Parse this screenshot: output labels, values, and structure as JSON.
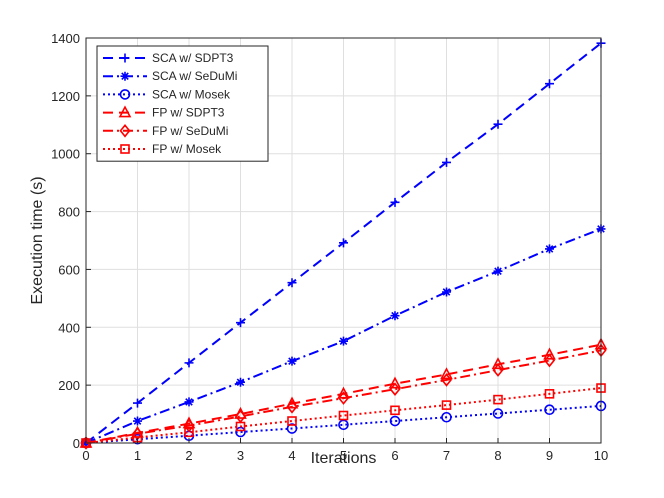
{
  "chart_data": {
    "type": "line",
    "title": "",
    "xlabel": "Iterations",
    "ylabel": "Execution time (s)",
    "xlim": [
      0,
      10
    ],
    "ylim": [
      0,
      1400
    ],
    "xticks": [
      0,
      1,
      2,
      3,
      4,
      5,
      6,
      7,
      8,
      9,
      10
    ],
    "yticks": [
      0,
      200,
      400,
      600,
      800,
      1000,
      1200,
      1400
    ],
    "grid": true,
    "legend_position": "top-left",
    "x": [
      0,
      1,
      2,
      3,
      4,
      5,
      6,
      7,
      8,
      9,
      10
    ],
    "series": [
      {
        "name": "SCA w/ SDPT3",
        "color": "#0000FF",
        "dash": "dashed",
        "marker": "plus",
        "values": [
          0,
          138,
          277,
          416,
          554,
          692,
          832,
          970,
          1102,
          1242,
          1382
        ]
      },
      {
        "name": "SCA w/ SeDuMi",
        "color": "#0000FF",
        "dash": "dashdot",
        "marker": "asterisk",
        "values": [
          0,
          76,
          142,
          210,
          283,
          352,
          440,
          522,
          594,
          671,
          740
        ]
      },
      {
        "name": "SCA w/ Mosek",
        "color": "#0000FF",
        "dash": "dotted",
        "marker": "circle",
        "values": [
          0,
          13,
          25,
          38,
          50,
          63,
          76,
          89,
          102,
          115,
          128
        ]
      },
      {
        "name": "FP w/ SDPT3",
        "color": "#FF0000",
        "dash": "dashed",
        "marker": "triangle",
        "values": [
          0,
          35,
          67,
          100,
          136,
          170,
          205,
          237,
          272,
          305,
          340
        ]
      },
      {
        "name": "FP w/ SeDuMi",
        "color": "#FF0000",
        "dash": "dashdot",
        "marker": "diamond",
        "values": [
          0,
          32,
          60,
          92,
          125,
          155,
          186,
          218,
          252,
          285,
          320
        ]
      },
      {
        "name": "FP w/ Mosek",
        "color": "#FF0000",
        "dash": "dotted",
        "marker": "square",
        "values": [
          0,
          19,
          37,
          57,
          76,
          95,
          113,
          131,
          150,
          170,
          190
        ]
      }
    ]
  }
}
